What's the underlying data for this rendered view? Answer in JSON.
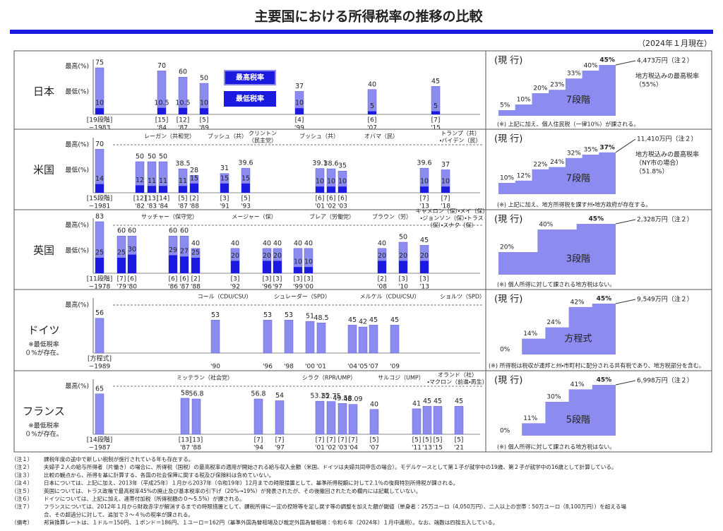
{
  "header": {
    "title": "主要国における所得税率の推移の比較",
    "date": "（2024年１月現在）"
  },
  "chart_data": [
    {
      "type": "bar",
      "country": "日本",
      "ylabel_max": "最高(%)",
      "ylabel_min": "最低(%)",
      "categories": [
        "~1983",
        "'84",
        "'87",
        "'89",
        "'99",
        "'07",
        "'15"
      ],
      "brackets": [
        "[19段階]",
        "[15]",
        "[12]",
        "[5]",
        "[4]",
        "[6]",
        "[7]"
      ],
      "series": [
        {
          "name": "最高税率",
          "color": "#8c8cf0",
          "values": [
            75,
            70,
            60,
            50,
            37,
            40,
            45
          ]
        },
        {
          "name": "最低税率",
          "color": "#1a1ae0",
          "values": [
            10,
            10.5,
            10.5,
            10,
            10,
            5,
            5
          ]
        }
      ],
      "eras": [],
      "current": {
        "label": "(現 行)",
        "rates": [
          5,
          10,
          20,
          23,
          33,
          40,
          45
        ],
        "rate_labels": [
          "5%",
          "10%",
          "20%",
          "23%",
          "33%",
          "40%",
          "45%"
        ],
        "threshold": "4,473万円（注２）",
        "stages": "7段階",
        "local": [
          "地方税込みの最高税率",
          "（55%）"
        ],
        "note": "(※) 上記に加え、個人住民税（一律10%）が課される。"
      }
    },
    {
      "type": "bar",
      "country": "米国",
      "ylabel_max": "最高(%)",
      "ylabel_min": "最低(%)",
      "categories": [
        "~1981",
        "'82",
        "'83",
        "'84",
        "'87",
        "'88",
        "'91",
        "'93",
        "'01",
        "'02",
        "'03",
        "'13",
        "'18"
      ],
      "brackets": [
        "[15段階]",
        "[12]",
        "[13]",
        "[14]",
        "[5]",
        "[2]",
        "[3]",
        "[5]",
        "[6]",
        "[6]",
        "[6]",
        "[7]",
        "[7]"
      ],
      "series": [
        {
          "color": "#8c8cf0",
          "values": [
            70,
            50,
            50,
            50,
            38.5,
            28,
            31,
            39.6,
            39.1,
            38.6,
            35,
            39.6,
            37
          ]
        },
        {
          "color": "#1a1ae0",
          "values": [
            14,
            12,
            11,
            11,
            11,
            15,
            15,
            15,
            10,
            10,
            10,
            10,
            10
          ]
        }
      ],
      "eras": [
        [
          "レーガン（共和党）"
        ],
        [
          "ブッシュ（共）"
        ],
        [
          "クリントン",
          "（民主党）"
        ],
        [
          "ブッシュ（共）"
        ],
        [
          "オバマ（民）"
        ],
        [
          "トランプ（共）",
          "・バイデン（民）"
        ]
      ],
      "current": {
        "label": "(現 行)",
        "rates": [
          10,
          12,
          22,
          24,
          32,
          35,
          37
        ],
        "rate_labels": [
          "10%",
          "12%",
          "22%",
          "24%",
          "32%",
          "35%",
          "37%"
        ],
        "threshold": "11,410万円（注２）",
        "stages": "7段階",
        "local": [
          "地方税込みの最高税率",
          "（NY市の場合）",
          "（51.8%）"
        ],
        "note": "(※) 上記に加え、地方所得税を課す州・地方政府が存在する。"
      }
    },
    {
      "type": "bar",
      "country": "英国",
      "ylabel_max": "最高(%)",
      "ylabel_min": "最低(%)",
      "categories": [
        "~1978",
        "'79",
        "'80",
        "'86",
        "'87",
        "'88",
        "'92",
        "'96",
        "'97",
        "'99",
        "'00",
        "'08",
        "'10",
        "'13"
      ],
      "brackets": [
        "[11段階]",
        "[7]",
        "[6]",
        "[6]",
        "[6]",
        "[2]",
        "[3]",
        "[3]",
        "[3]",
        "[3]",
        "[3]",
        "[2]",
        "[3]",
        "[3]"
      ],
      "series": [
        {
          "color": "#8c8cf0",
          "values": [
            83,
            60,
            60,
            60,
            60,
            40,
            40,
            40,
            40,
            40,
            40,
            40,
            50,
            45
          ]
        },
        {
          "color": "#1a1ae0",
          "values": [
            25,
            25,
            30,
            29,
            27,
            25,
            20,
            20,
            20,
            10,
            10,
            20,
            20,
            20
          ]
        }
      ],
      "eras": [
        [
          "サッチャー（保守党）"
        ],
        [
          "メージャー（保）"
        ],
        [
          "ブレア（労働党）"
        ],
        [
          "ブラウン（労）"
        ],
        [
          "キャメロン（保）・メイ（保）",
          "・ジョンソン（保）・トラス",
          "（保）・スナク（保）"
        ]
      ],
      "current": {
        "label": "(現 行)",
        "rates": [
          20,
          40,
          45
        ],
        "rate_labels": [
          "20%",
          "40%",
          "45%"
        ],
        "threshold": "2,328万円（注２）",
        "stages": "3段階",
        "note": "(※) 個人所得に対して課される地方税はない。"
      }
    },
    {
      "type": "bar",
      "country": "ドイツ",
      "ylabel_max": "最高(%)",
      "side_note": [
        "※最低税率",
        "０%が存在。"
      ],
      "categories": [
        "~1989",
        "'90",
        "'96",
        "'98",
        "'00",
        "'01",
        "'04",
        "'05",
        "'07",
        "'09"
      ],
      "brackets": [
        "[方程式]",
        null,
        null,
        null,
        null,
        null,
        null,
        null,
        null,
        null
      ],
      "series": [
        {
          "color": "#8c8cf0",
          "values": [
            56,
            53,
            53,
            53,
            51,
            48.5,
            45,
            42,
            45,
            45
          ]
        }
      ],
      "eras": [
        [
          "コール（CDU/CSU）"
        ],
        [
          "シュレーダー（SPD）"
        ],
        [
          "メルケル（CDU/CSU）"
        ],
        [
          "ショルツ（SPD）"
        ]
      ],
      "current": {
        "label": "(現 行)",
        "rates": [
          0,
          14,
          24,
          42,
          45
        ],
        "rate_labels": [
          "0%",
          "14%",
          "24%",
          "42%",
          "45%"
        ],
        "threshold": "9,549万円（注２）",
        "stages": "方程式",
        "note": "(※) 所得税は税収が連邦と州・市町村に配分される共有税であり、地方税部分を含む。"
      }
    },
    {
      "type": "bar",
      "country": "フランス",
      "ylabel_max": "最高(%)",
      "side_note": [
        "※最低税率",
        "０%が存在。"
      ],
      "categories": [
        "~1987",
        "'87",
        "'88",
        "'94",
        "'97",
        "'01",
        "'02",
        "'03",
        "'04",
        "'07",
        "'11",
        "'13",
        "'15",
        "'21"
      ],
      "brackets": [
        "[14段階]",
        "[13]",
        "[13]",
        "[7]",
        "[7]",
        "[7]",
        "[7]",
        "[7]",
        "[7]",
        "[5]",
        "[5]",
        "[5]",
        "[5]",
        "[5]"
      ],
      "series": [
        {
          "color": "#8c8cf0",
          "values": [
            65,
            58,
            56.8,
            56.8,
            54,
            53.25,
            52.75,
            49.58,
            48.09,
            40,
            41,
            45,
            45,
            45
          ]
        }
      ],
      "eras": [
        [
          "ミッテラン（社会党）"
        ],
        [
          "シラク（RPR/UMP）"
        ],
        [
          "サルコジ（UMP）"
        ],
        [
          "オランド（社）",
          "・マクロン（前進・再生）"
        ]
      ],
      "current": {
        "label": "(現 行)",
        "rates": [
          0,
          11,
          30,
          41,
          45
        ],
        "rate_labels": [
          "0%",
          "11%",
          "30%",
          "41%",
          "45%"
        ],
        "threshold": "6,998万円（注２）",
        "stages": "5段階",
        "note": "(※) 個人所得に対して課される地方税はない。"
      }
    }
  ],
  "notes": [
    {
      "label": "（注１）",
      "text": "課税年度の途中で新しい税制が施行されている年も存在する。"
    },
    {
      "label": "（注２）",
      "text": "夫婦子２人の給与所得者（片働き）の場合に、所得税（国税）の最高税率の適用が開始される給与収入金額（米国、ドイツは夫婦共同申告の場合）。モデルケースとして第１子が就学中の19歳、第２子が就学中の16歳として計算している。"
    },
    {
      "label": "（注３）",
      "text": "比較の観点から、所得を基に計算する、各国の社会保障に関する税及び保険料は含めていない。"
    },
    {
      "label": "（注４）",
      "text": "日本については、上記に加え、2013年（平成25年）１月から2037年（令和19年）12月までの時限措置として、基準所得税額に対して2.1％の復興特別所得税が課される。"
    },
    {
      "label": "（注５）",
      "text": "英国については、トラス政権で最高税率45%の廃止及び基本税率の引下げ（20%→19%）が発表されたが、その後撤回されたため欄内には記載していない。"
    },
    {
      "label": "（注６）",
      "text": "ドイツについては、上記に加え、連帯付加税（所得税額の０～5.5%）が課される。"
    },
    {
      "label": "（注７）",
      "text": "フランスについては、2012年１月から財政赤字が解消するまでの時限措置として、課税所得に一定の控除等を足し戻す等の調整を加えた額が閾値（単身者：25万ユーロ（4,050万円）、二人以上の世帯：50万ユーロ（8,100万円））を超える場"
    },
    {
      "text": "合、その超過分に対して、追加で３～４％の税率が課される。"
    },
    {
      "label": "（備考）",
      "text": "邦貨換算レートは、１ドル＝150円、１ポンド＝186円、１ユーロ＝162円（基準外国為替相場及び裁定外国為替相場：令和６年（2024年）１月中適用）。なお、端数は四捨五入している。"
    }
  ]
}
